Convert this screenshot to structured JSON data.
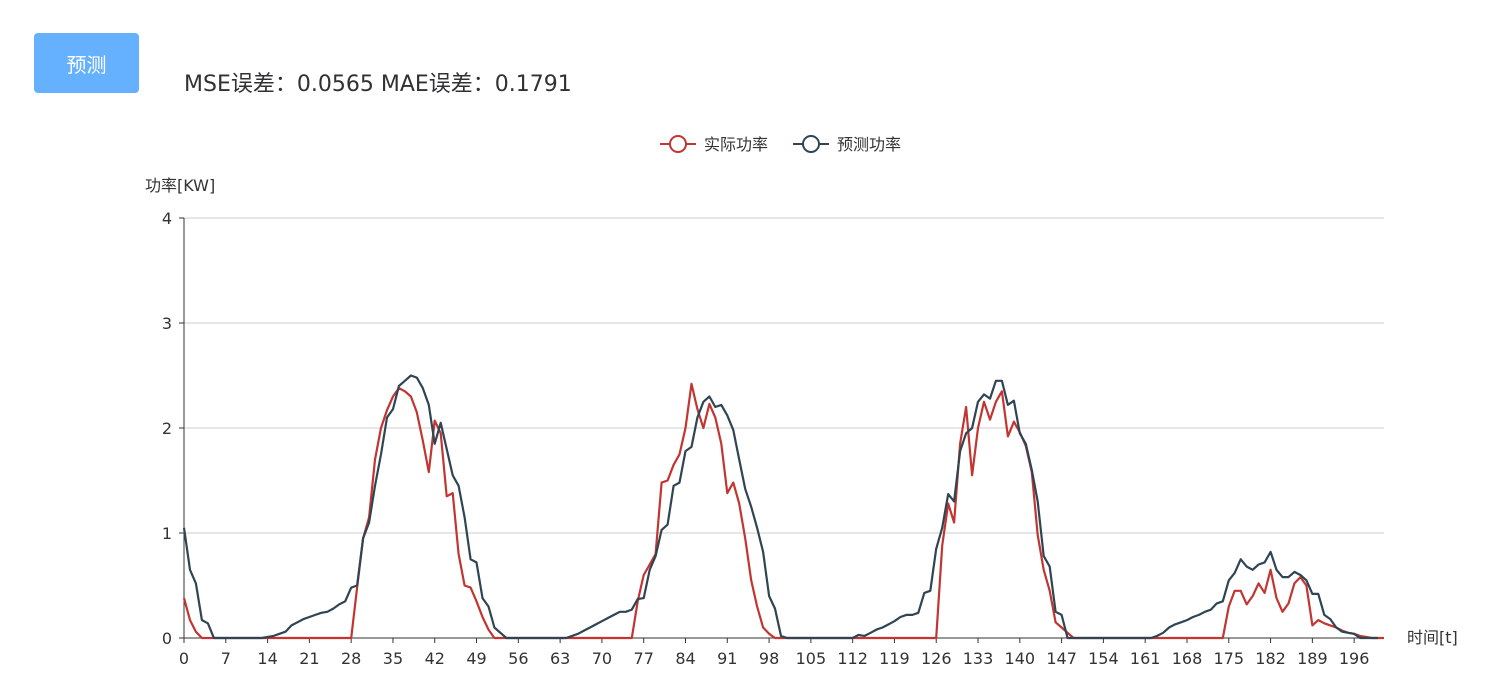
{
  "toolbar": {
    "predict_label": "预测"
  },
  "metrics": {
    "mse_label": "MSE误差：",
    "mse_value": "0.0565",
    "mae_label": "MAE误差：",
    "mae_value": "0.1791"
  },
  "colors": {
    "actual": "#c23531",
    "predicted": "#2f4554",
    "button": "#66b1ff",
    "grid": "#cccccc"
  },
  "chart_data": {
    "type": "line",
    "xlabel": "时间[t]",
    "ylabel": "功率[KW]",
    "ylim": [
      0,
      4
    ],
    "yticks": [
      0,
      1,
      2,
      3,
      4
    ],
    "xticks": [
      0,
      7,
      14,
      21,
      28,
      35,
      42,
      49,
      56,
      63,
      70,
      77,
      84,
      91,
      98,
      105,
      112,
      119,
      126,
      133,
      140,
      147,
      154,
      161,
      168,
      175,
      182,
      189,
      196
    ],
    "legend_position": "top-center",
    "grid": true,
    "series": [
      {
        "name": "实际功率",
        "x_start": 0,
        "values": [
          0.38,
          0.17,
          0.06,
          0,
          0,
          0,
          0,
          0,
          0,
          0,
          0,
          0,
          0,
          0,
          0,
          0,
          0,
          0,
          0,
          0,
          0,
          0,
          0,
          0,
          0,
          0,
          0,
          0,
          0,
          0.48,
          0.95,
          1.15,
          1.7,
          2.0,
          2.17,
          2.3,
          2.38,
          2.35,
          2.3,
          2.15,
          1.88,
          1.58,
          2.07,
          1.95,
          1.35,
          1.38,
          0.8,
          0.5,
          0.48,
          0.35,
          0.2,
          0.08,
          0,
          0,
          0,
          0,
          0,
          0,
          0,
          0,
          0,
          0,
          0,
          0,
          0,
          0,
          0,
          0,
          0,
          0,
          0,
          0,
          0,
          0,
          0,
          0,
          0.35,
          0.6,
          0.7,
          0.8,
          1.48,
          1.5,
          1.65,
          1.75,
          2.0,
          2.42,
          2.18,
          2.0,
          2.23,
          2.1,
          1.85,
          1.38,
          1.48,
          1.28,
          0.95,
          0.55,
          0.3,
          0.1,
          0.04,
          0,
          0,
          0,
          0,
          0,
          0,
          0,
          0,
          0,
          0,
          0,
          0,
          0,
          0,
          0,
          0,
          0,
          0,
          0,
          0,
          0,
          0,
          0,
          0,
          0,
          0,
          0,
          0,
          0.88,
          1.28,
          1.1,
          1.85,
          2.2,
          1.55,
          2.0,
          2.25,
          2.08,
          2.25,
          2.35,
          1.92,
          2.06,
          1.96,
          1.83,
          1.58,
          0.98,
          0.65,
          0.45,
          0.15,
          0.1,
          0.05,
          0,
          0,
          0,
          0,
          0,
          0,
          0,
          0,
          0,
          0,
          0,
          0,
          0,
          0,
          0,
          0,
          0,
          0,
          0,
          0,
          0,
          0,
          0,
          0,
          0,
          0,
          0.3,
          0.45,
          0.45,
          0.32,
          0.4,
          0.52,
          0.43,
          0.65,
          0.38,
          0.25,
          0.33,
          0.52,
          0.58,
          0.5,
          0.12,
          0.17,
          0.14,
          0.12,
          0.1,
          0.07,
          0.05,
          0.04,
          0.02,
          0.01,
          0,
          0,
          0
        ]
      },
      {
        "name": "预测功率",
        "x_start": 0,
        "values": [
          1.05,
          0.65,
          0.52,
          0.17,
          0.14,
          0,
          0,
          0,
          0,
          0,
          0,
          0,
          0,
          0,
          0.01,
          0.02,
          0.04,
          0.06,
          0.12,
          0.15,
          0.18,
          0.2,
          0.22,
          0.24,
          0.25,
          0.28,
          0.32,
          0.35,
          0.48,
          0.5,
          0.95,
          1.1,
          1.45,
          1.75,
          2.1,
          2.18,
          2.4,
          2.45,
          2.5,
          2.48,
          2.38,
          2.22,
          1.85,
          2.05,
          1.8,
          1.55,
          1.45,
          1.15,
          0.75,
          0.72,
          0.38,
          0.3,
          0.1,
          0.05,
          0,
          0,
          0,
          0,
          0,
          0,
          0,
          0,
          0,
          0,
          0,
          0.02,
          0.04,
          0.07,
          0.1,
          0.13,
          0.16,
          0.19,
          0.22,
          0.25,
          0.25,
          0.27,
          0.37,
          0.38,
          0.65,
          0.78,
          1.03,
          1.08,
          1.45,
          1.48,
          1.78,
          1.82,
          2.1,
          2.25,
          2.3,
          2.2,
          2.22,
          2.12,
          1.98,
          1.7,
          1.42,
          1.25,
          1.05,
          0.82,
          0.4,
          0.28,
          0.02,
          0,
          0,
          0,
          0,
          0,
          0,
          0,
          0,
          0,
          0,
          0,
          0,
          0.03,
          0.02,
          0.05,
          0.08,
          0.1,
          0.13,
          0.16,
          0.2,
          0.22,
          0.22,
          0.24,
          0.43,
          0.45,
          0.85,
          1.05,
          1.37,
          1.3,
          1.78,
          1.95,
          2.0,
          2.25,
          2.32,
          2.28,
          2.45,
          2.45,
          2.22,
          2.26,
          1.95,
          1.85,
          1.6,
          1.3,
          0.78,
          0.68,
          0.25,
          0.22,
          0,
          0,
          0,
          0,
          0,
          0,
          0,
          0,
          0,
          0,
          0,
          0,
          0,
          0,
          0,
          0.02,
          0.05,
          0.1,
          0.13,
          0.15,
          0.17,
          0.2,
          0.22,
          0.25,
          0.27,
          0.33,
          0.35,
          0.55,
          0.62,
          0.75,
          0.68,
          0.65,
          0.7,
          0.72,
          0.82,
          0.65,
          0.58,
          0.58,
          0.63,
          0.6,
          0.55,
          0.42,
          0.42,
          0.22,
          0.18,
          0.1,
          0.06,
          0.05,
          0.04,
          0,
          0,
          0,
          0
        ]
      }
    ]
  }
}
